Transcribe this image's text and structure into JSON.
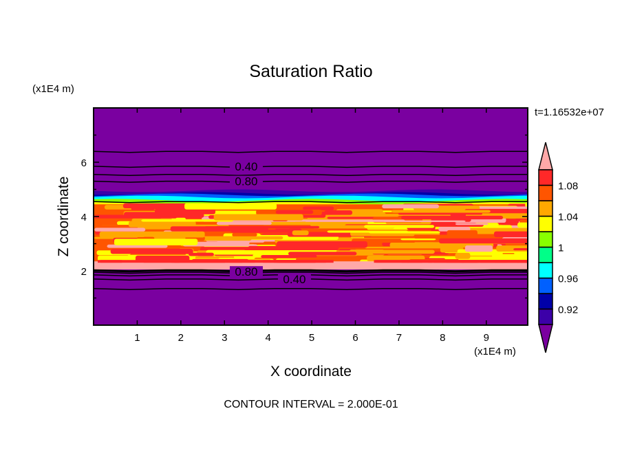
{
  "chart_data": {
    "type": "heatmap",
    "subtype": "filled contour",
    "title": "Saturation Ratio",
    "xlabel": "X coordinate",
    "ylabel": "Z coordinate",
    "x_unit_label": "(x1E4 m)",
    "y_unit_label": "(x1E4 m)",
    "time_label": "t=1.16532e+07",
    "footer": "CONTOUR INTERVAL = 2.000E-01",
    "xlim": [
      0,
      9.95
    ],
    "ylim": [
      0,
      8
    ],
    "x_ticks": [
      "1",
      "2",
      "3",
      "4",
      "5",
      "6",
      "7",
      "8",
      "9"
    ],
    "y_ticks": [
      "2",
      "4",
      "6"
    ],
    "colorbar": {
      "levels": [
        0.9,
        0.92,
        0.94,
        0.96,
        0.98,
        1.0,
        1.02,
        1.04,
        1.06,
        1.08,
        1.1
      ],
      "tick_labels": [
        {
          "value": 0.92,
          "label": "0.92"
        },
        {
          "value": 0.96,
          "label": "0.96"
        },
        {
          "value": 1.0,
          "label": "1"
        },
        {
          "value": 1.04,
          "label": "1.04"
        },
        {
          "value": 1.08,
          "label": "1.08"
        }
      ],
      "colors": [
        "#7a00a0",
        "#3c00a8",
        "#0000a8",
        "#0060ff",
        "#00ffff",
        "#00ff88",
        "#88ff00",
        "#ffff00",
        "#ffa800",
        "#ff5500",
        "#ff2828",
        "#ffa8a8"
      ],
      "extend": "both"
    },
    "saturated_layer_z": [
      2.05,
      4.55
    ],
    "contour_lines_z": [
      6.4,
      5.85,
      5.55,
      5.3,
      4.55,
      2.02,
      1.95,
      1.85,
      1.7,
      1.35
    ],
    "contour_labels": [
      {
        "x": 3.5,
        "z": 5.85,
        "label": "0.40"
      },
      {
        "x": 3.5,
        "z": 5.3,
        "label": "0.80"
      },
      {
        "x": 3.5,
        "z": 1.97,
        "label": "0.80"
      },
      {
        "x": 3.5,
        "z": 1.7,
        "label": "0.40"
      }
    ]
  }
}
